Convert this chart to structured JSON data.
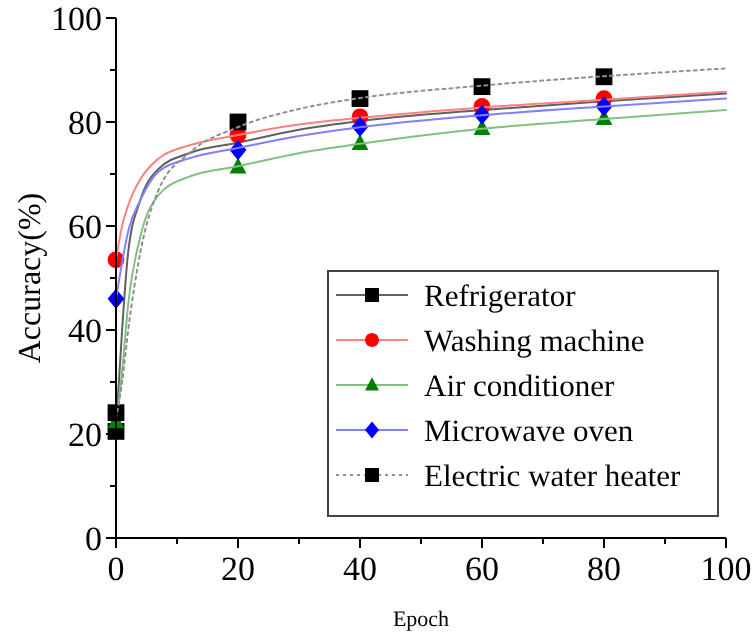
{
  "chart_data": {
    "type": "scatter",
    "xlabel": "Epoch",
    "ylabel": "Accuracy(%)",
    "xlim": [
      0,
      100
    ],
    "ylim": [
      0,
      100
    ],
    "xticks": [
      0,
      {
        "value": 10,
        "label": null
      },
      20,
      {
        "value": 30,
        "label": null
      },
      40,
      {
        "value": 50,
        "label": null
      },
      60,
      {
        "value": 70,
        "label": null
      },
      80,
      {
        "value": 90,
        "label": null
      },
      100
    ],
    "yticks": [
      0,
      {
        "value": 10,
        "label": null
      },
      20,
      {
        "value": 30,
        "label": null
      },
      40,
      {
        "value": 50,
        "label": null
      },
      60,
      {
        "value": 70,
        "label": null
      },
      80,
      {
        "value": 90,
        "label": null
      },
      100
    ],
    "legend": "bottom right",
    "grid": false,
    "series": [
      {
        "name": "Refrigerator",
        "color": "#000000",
        "marker": "square",
        "x": [
          0
        ],
        "values": [
          20.5
        ]
      },
      {
        "type": "line",
        "color": "#606060",
        "line_style": "solid",
        "marker": "none",
        "x": [
          0,
          1,
          2,
          4,
          7,
          12,
          20,
          30,
          40,
          60,
          80,
          100
        ],
        "values": [
          21,
          40,
          55,
          65,
          71,
          74,
          76,
          78.5,
          80.2,
          82.3,
          84,
          85.5
        ]
      },
      {
        "name": "Washing machine",
        "color": "#ff0000",
        "marker": "circle",
        "x": [
          0,
          20,
          40,
          60,
          80
        ],
        "values": [
          53.5,
          77.5,
          81,
          83,
          84.5
        ]
      },
      {
        "type": "line",
        "color": "#ff8080",
        "line_style": "solid",
        "marker": "none",
        "x": [
          0,
          1,
          2,
          4,
          7,
          12,
          20,
          30,
          40,
          60,
          80,
          100
        ],
        "values": [
          53.5,
          60,
          64,
          69,
          73,
          75.5,
          77.5,
          79.5,
          80.8,
          82.8,
          84.3,
          85.8
        ]
      },
      {
        "name": "Air conditioner",
        "color": "#008000",
        "marker": "triangle",
        "x": [
          0,
          20,
          40,
          60,
          80
        ],
        "values": [
          22.4,
          71.4,
          75.9,
          78.8,
          80.7
        ]
      },
      {
        "type": "line",
        "color": "#80c080",
        "line_style": "solid",
        "marker": "none",
        "x": [
          0,
          1,
          2,
          4,
          7,
          12,
          20,
          30,
          40,
          60,
          80,
          100
        ],
        "values": [
          22,
          32,
          45,
          58,
          66,
          69.5,
          71.5,
          74,
          75.8,
          78.7,
          80.6,
          82.3
        ]
      },
      {
        "name": "Microwave oven",
        "color": "#0000ff",
        "marker": "diamond",
        "x": [
          0,
          20,
          40,
          60,
          80
        ],
        "values": [
          46,
          74.6,
          79.1,
          81.4,
          83
        ]
      },
      {
        "type": "line",
        "color": "#8080ff",
        "line_style": "solid",
        "marker": "none",
        "x": [
          0,
          1,
          2,
          4,
          7,
          12,
          20,
          30,
          40,
          60,
          80,
          100
        ],
        "values": [
          46,
          53,
          59,
          65,
          70.5,
          73,
          75,
          77.3,
          79,
          81.3,
          83,
          84.5
        ]
      },
      {
        "name": "Electric water heater",
        "color": "#000000",
        "marker": "square",
        "x": [
          0,
          20,
          40,
          60,
          80
        ],
        "values": [
          24.1,
          80,
          84.5,
          86.8,
          88.7
        ]
      },
      {
        "type": "line",
        "color": "#909090",
        "line_style": "dotted",
        "marker": "none",
        "x": [
          0,
          1,
          2,
          4,
          7,
          12,
          20,
          30,
          40,
          60,
          80,
          100
        ],
        "values": [
          23,
          30,
          40,
          55,
          67,
          74,
          79,
          82.5,
          84.6,
          87,
          88.8,
          90.3
        ]
      }
    ]
  }
}
